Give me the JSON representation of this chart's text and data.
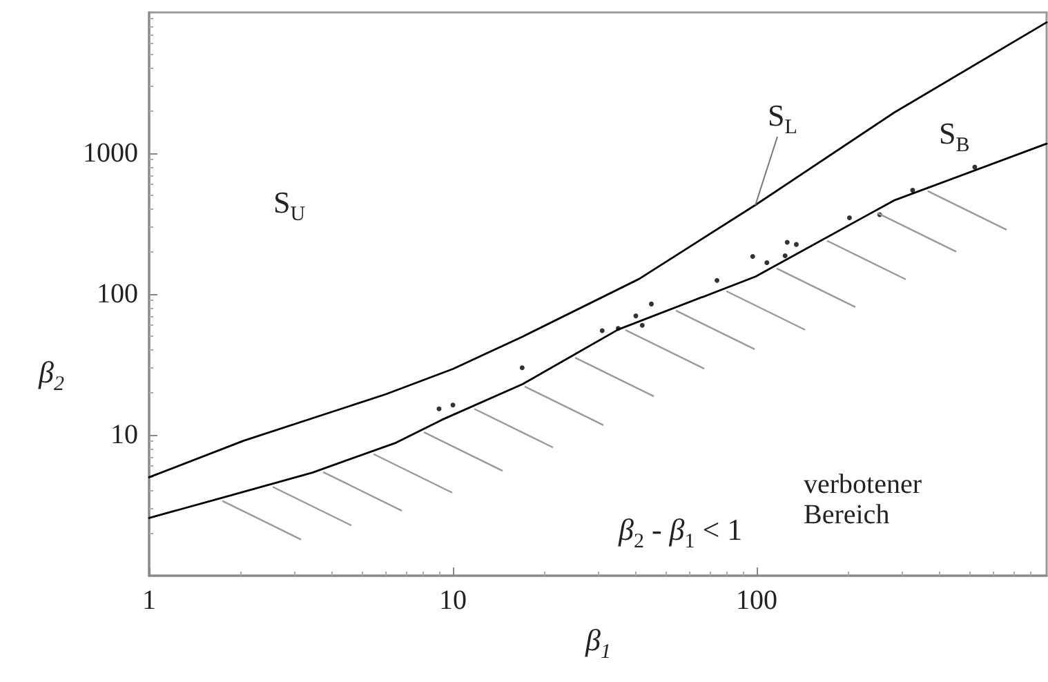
{
  "chart_data": {
    "type": "line",
    "log": "xy",
    "grid": false,
    "legend": false,
    "marker": "circle",
    "xlabel": "β$_{1}$",
    "ylabel": "β$_{2}$",
    "xlim": [
      1,
      900
    ],
    "xticks": [
      1,
      10,
      100
    ],
    "ylim": [
      1,
      10000
    ],
    "yticks": [
      10,
      100,
      1000
    ],
    "annotations": [
      "S$_{U}$",
      "verbotener Bereich",
      "β$_{2}$ - β$_{1}$ < 1"
    ],
    "series": [
      {
        "name": "S$_{L}$",
        "marker": "none",
        "line_style": "solid",
        "color": "#000000",
        "x": [
          1,
          2.05,
          6,
          10,
          17,
          41,
          99,
          283,
          900
        ],
        "values": [
          5,
          9.1,
          19.4,
          29.4,
          50,
          128,
          429,
          1940,
          8500
        ]
      },
      {
        "name": "S$_{B}$",
        "marker": "none",
        "line_style": "solid",
        "color": "#000000",
        "x": [
          1,
          1.84,
          3.45,
          6.5,
          9.2,
          17,
          35,
          99,
          283,
          900
        ],
        "values": [
          2.57,
          3.7,
          5.4,
          8.8,
          12.8,
          23,
          56,
          133,
          462,
          1170
        ]
      },
      {
        "type": "scatter",
        "color": "#000000",
        "x": [
          9,
          10,
          16.9,
          31,
          35,
          40,
          42,
          45,
          74,
          97,
          108,
          124,
          126,
          135,
          202,
          254,
          326,
          522
        ],
        "values": [
          15.3,
          16.3,
          30,
          55,
          57,
          70,
          60,
          85,
          125,
          185,
          167,
          187,
          233,
          225,
          348,
          366,
          546,
          797
        ]
      }
    ]
  }
}
